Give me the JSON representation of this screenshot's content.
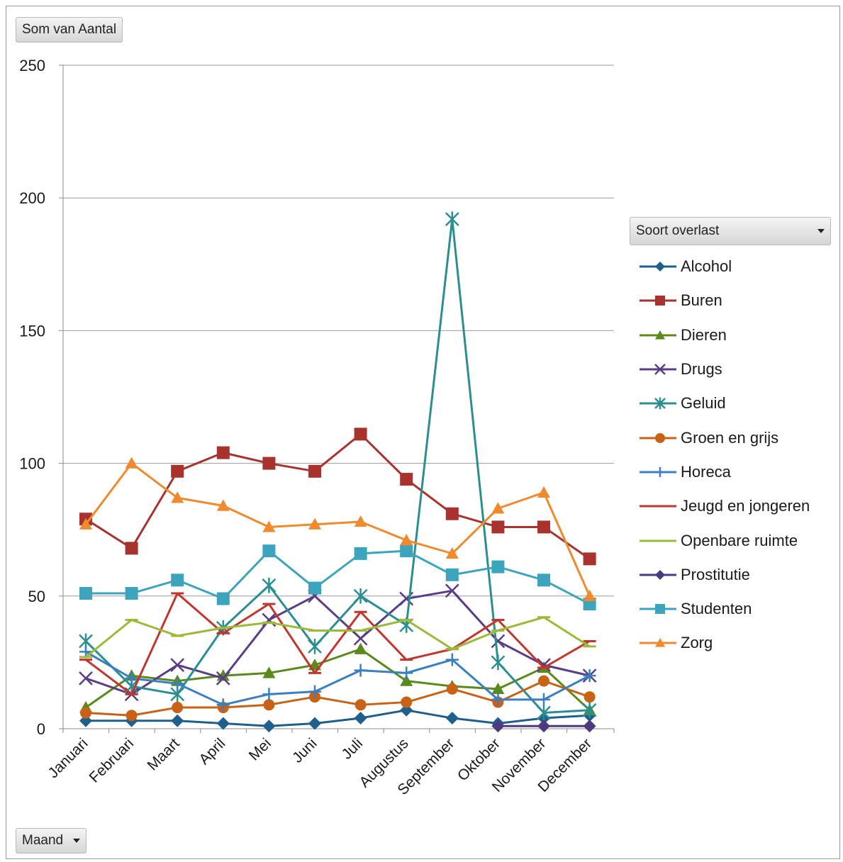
{
  "value_field": {
    "label": "Som van Aantal"
  },
  "row_field": {
    "label": "Maand"
  },
  "legend_field": {
    "label": "Soort overlast"
  },
  "chart_data": {
    "type": "line",
    "title": "",
    "xlabel": "",
    "ylabel": "",
    "ylim": [
      0,
      250
    ],
    "yticks": [
      0,
      50,
      100,
      150,
      200,
      250
    ],
    "grid": true,
    "legend_position": "right",
    "categories": [
      "Januari",
      "Februari",
      "Maart",
      "April",
      "Mei",
      "Juni",
      "Juli",
      "Augustus",
      "September",
      "Oktober",
      "November",
      "December"
    ],
    "series": [
      {
        "name": "Alcohol",
        "color": "#1f5f8b",
        "marker": "diamond",
        "values": [
          3,
          3,
          3,
          2,
          1,
          2,
          4,
          7,
          4,
          2,
          4,
          5
        ]
      },
      {
        "name": "Buren",
        "color": "#a8322e",
        "marker": "square",
        "values": [
          79,
          68,
          97,
          104,
          100,
          97,
          111,
          94,
          81,
          76,
          76,
          64
        ]
      },
      {
        "name": "Dieren",
        "color": "#5a8a1c",
        "marker": "triangle",
        "values": [
          8,
          20,
          18,
          20,
          21,
          24,
          30,
          18,
          16,
          15,
          23,
          7
        ]
      },
      {
        "name": "Drugs",
        "color": "#5a3d86",
        "marker": "x",
        "values": [
          19,
          13,
          24,
          19,
          41,
          50,
          34,
          49,
          52,
          33,
          24,
          20
        ]
      },
      {
        "name": "Geluid",
        "color": "#2b8f92",
        "marker": "asterisk",
        "values": [
          33,
          16,
          13,
          38,
          54,
          31,
          50,
          39,
          192,
          25,
          6,
          7
        ]
      },
      {
        "name": "Groen en grijs",
        "color": "#c86216",
        "marker": "circle",
        "values": [
          6,
          5,
          8,
          8,
          9,
          12,
          9,
          10,
          15,
          10,
          18,
          12
        ]
      },
      {
        "name": "Horeca",
        "color": "#3a7fc0",
        "marker": "plus",
        "values": [
          29,
          19,
          17,
          9,
          13,
          14,
          22,
          21,
          26,
          11,
          11,
          20
        ]
      },
      {
        "name": "Jeugd en jongeren",
        "color": "#c0372f",
        "marker": "dash",
        "values": [
          26,
          13,
          51,
          36,
          47,
          21,
          44,
          26,
          30,
          41,
          23,
          33
        ]
      },
      {
        "name": "Openbare ruimte",
        "color": "#9bbb38",
        "marker": "dash",
        "values": [
          27,
          41,
          35,
          38,
          40,
          37,
          37,
          41,
          30,
          37,
          42,
          31
        ]
      },
      {
        "name": "Prostitutie",
        "color": "#4b3a7d",
        "marker": "diamond",
        "values": [
          null,
          null,
          null,
          null,
          null,
          null,
          null,
          null,
          null,
          1,
          1,
          1
        ]
      },
      {
        "name": "Studenten",
        "color": "#3da4bd",
        "marker": "square",
        "values": [
          51,
          51,
          56,
          49,
          67,
          53,
          66,
          67,
          58,
          61,
          56,
          47
        ]
      },
      {
        "name": "Zorg",
        "color": "#ef8a2e",
        "marker": "triangle",
        "values": [
          77,
          100,
          87,
          84,
          76,
          77,
          78,
          71,
          66,
          83,
          89,
          50
        ]
      }
    ]
  }
}
